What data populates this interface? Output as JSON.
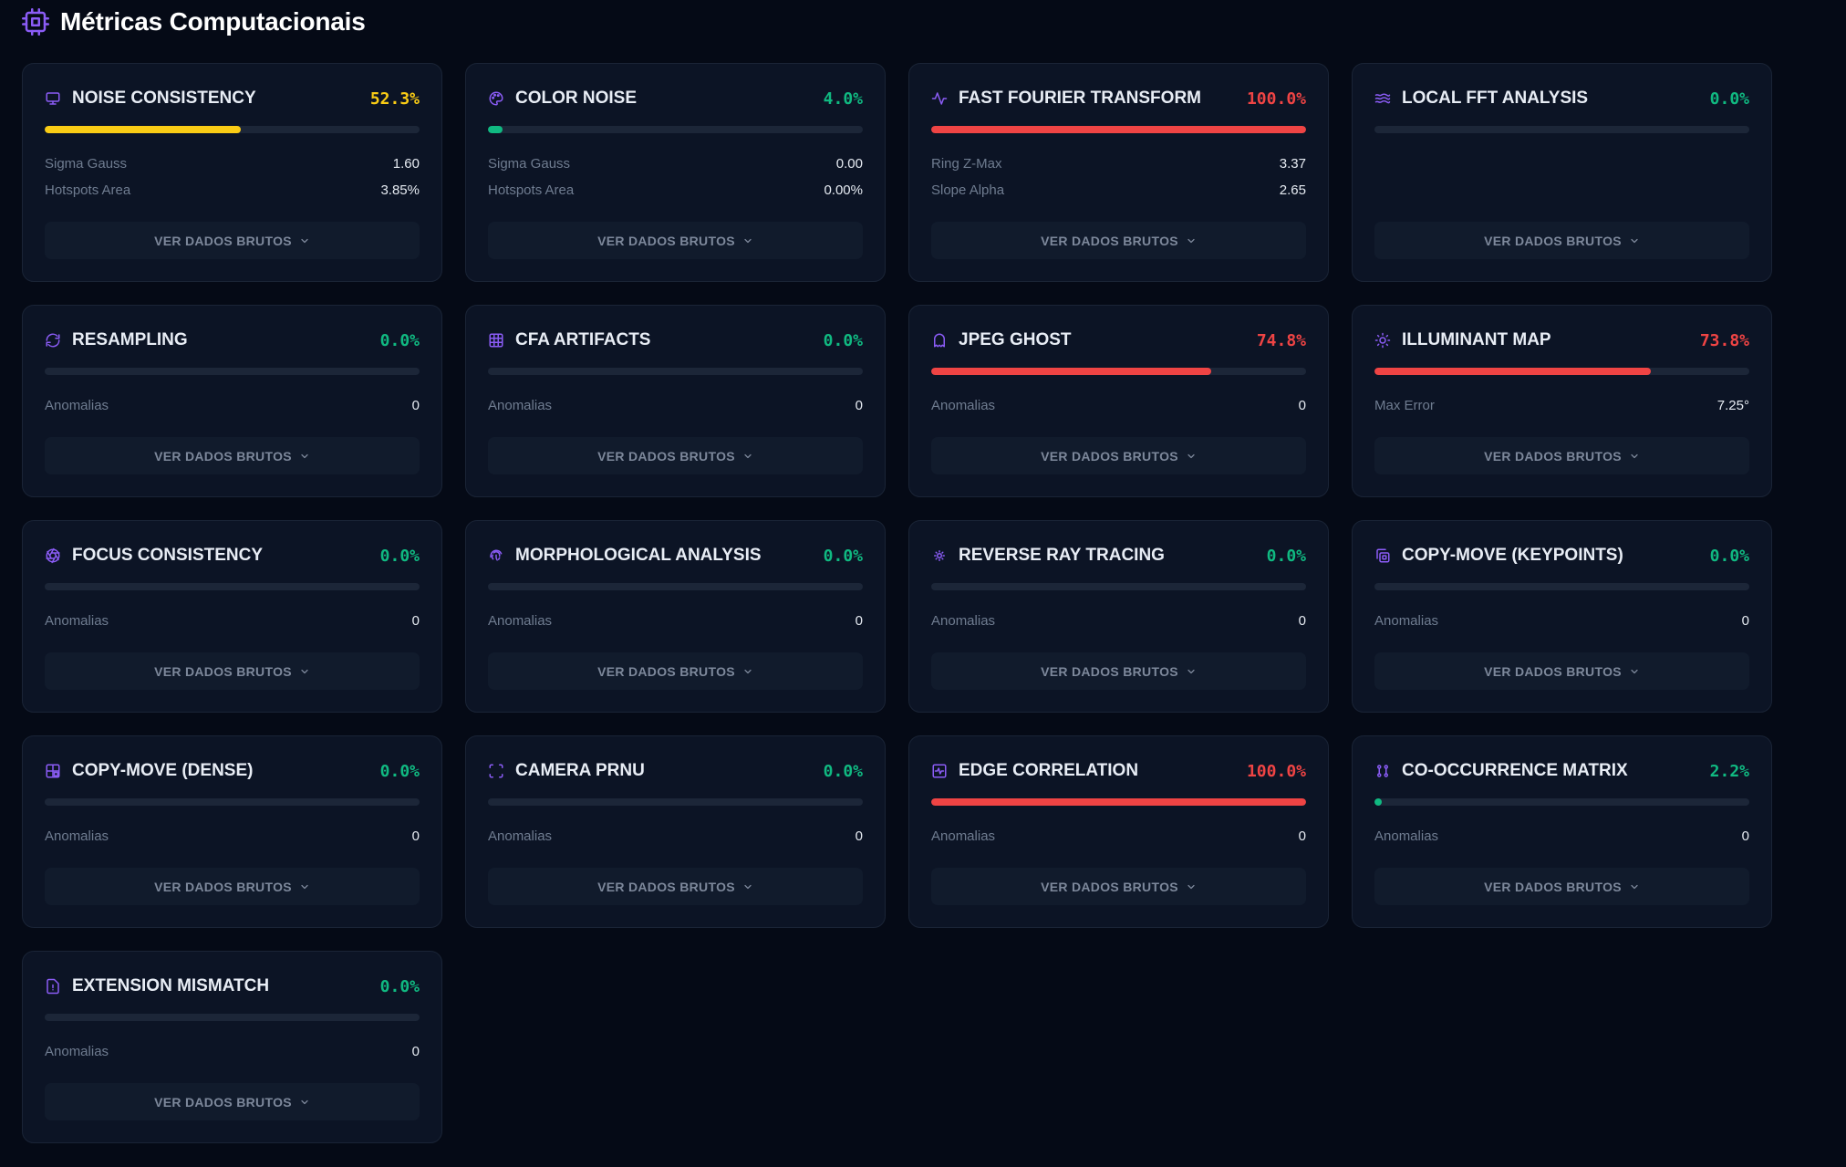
{
  "page": {
    "title": "Métricas Computacionais"
  },
  "colors": {
    "accent": "#8b5cf6",
    "warn": "#facc15",
    "danger": "#ef4444",
    "ok": "#10b981"
  },
  "cards": [
    {
      "title": "NOISE CONSISTENCY",
      "icon": "monitor-icon",
      "score": "52.3%",
      "level": 52.3,
      "status": "warn",
      "metrics": [
        {
          "label": "Sigma Gauss",
          "value": "1.60"
        },
        {
          "label": "Hotspots Area",
          "value": "3.85%"
        }
      ],
      "button": "VER DADOS BRUTOS"
    },
    {
      "title": "COLOR NOISE",
      "icon": "palette-icon",
      "score": "4.0%",
      "level": 4.0,
      "status": "ok",
      "metrics": [
        {
          "label": "Sigma Gauss",
          "value": "0.00"
        },
        {
          "label": "Hotspots Area",
          "value": "0.00%"
        }
      ],
      "button": "VER DADOS BRUTOS"
    },
    {
      "title": "FAST FOURIER TRANSFORM",
      "icon": "activity-icon",
      "score": "100.0%",
      "level": 100,
      "status": "danger",
      "metrics": [
        {
          "label": "Ring Z-Max",
          "value": "3.37"
        },
        {
          "label": "Slope Alpha",
          "value": "2.65"
        }
      ],
      "button": "VER DADOS BRUTOS"
    },
    {
      "title": "LOCAL FFT ANALYSIS",
      "icon": "waves-icon",
      "score": "0.0%",
      "level": 0,
      "status": "ok",
      "metrics": [],
      "button": "VER DADOS BRUTOS"
    },
    {
      "title": "RESAMPLING",
      "icon": "refresh-icon",
      "score": "0.0%",
      "level": 0,
      "status": "ok",
      "metrics": [
        {
          "label": "Anomalias",
          "value": "0"
        }
      ],
      "button": "VER DADOS BRUTOS"
    },
    {
      "title": "CFA ARTIFACTS",
      "icon": "grid-icon",
      "score": "0.0%",
      "level": 0,
      "status": "ok",
      "metrics": [
        {
          "label": "Anomalias",
          "value": "0"
        }
      ],
      "button": "VER DADOS BRUTOS"
    },
    {
      "title": "JPEG GHOST",
      "icon": "ghost-icon",
      "score": "74.8%",
      "level": 74.8,
      "status": "danger",
      "metrics": [
        {
          "label": "Anomalias",
          "value": "0"
        }
      ],
      "button": "VER DADOS BRUTOS"
    },
    {
      "title": "ILLUMINANT MAP",
      "icon": "sun-icon",
      "score": "73.8%",
      "level": 73.8,
      "status": "danger",
      "metrics": [
        {
          "label": "Max Error",
          "value": "7.25°"
        }
      ],
      "button": "VER DADOS BRUTOS"
    },
    {
      "title": "FOCUS CONSISTENCY",
      "icon": "aperture-icon",
      "score": "0.0%",
      "level": 0,
      "status": "ok",
      "metrics": [
        {
          "label": "Anomalias",
          "value": "0"
        }
      ],
      "button": "VER DADOS BRUTOS"
    },
    {
      "title": "MORPHOLOGICAL ANALYSIS",
      "icon": "fingerprint-icon",
      "score": "0.0%",
      "level": 0,
      "status": "ok",
      "metrics": [
        {
          "label": "Anomalias",
          "value": "0"
        }
      ],
      "button": "VER DADOS BRUTOS"
    },
    {
      "title": "REVERSE RAY TRACING",
      "icon": "sun-small-icon",
      "score": "0.0%",
      "level": 0,
      "status": "ok",
      "metrics": [
        {
          "label": "Anomalias",
          "value": "0"
        }
      ],
      "button": "VER DADOS BRUTOS"
    },
    {
      "title": "COPY-MOVE (KEYPOINTS)",
      "icon": "copy-icon",
      "score": "0.0%",
      "level": 0,
      "status": "ok",
      "metrics": [
        {
          "label": "Anomalias",
          "value": "0"
        }
      ],
      "button": "VER DADOS BRUTOS"
    },
    {
      "title": "COPY-MOVE (DENSE)",
      "icon": "layout-icon",
      "score": "0.0%",
      "level": 0,
      "status": "ok",
      "metrics": [
        {
          "label": "Anomalias",
          "value": "0"
        }
      ],
      "button": "VER DADOS BRUTOS"
    },
    {
      "title": "CAMERA PRNU",
      "icon": "scan-icon",
      "score": "0.0%",
      "level": 0,
      "status": "ok",
      "metrics": [
        {
          "label": "Anomalias",
          "value": "0"
        }
      ],
      "button": "VER DADOS BRUTOS"
    },
    {
      "title": "EDGE CORRELATION",
      "icon": "square-activity-icon",
      "score": "100.0%",
      "level": 100,
      "status": "danger",
      "metrics": [
        {
          "label": "Anomalias",
          "value": "0"
        }
      ],
      "button": "VER DADOS BRUTOS"
    },
    {
      "title": "CO-OCCURRENCE MATRIX",
      "icon": "dots-icon",
      "score": "2.2%",
      "level": 2.2,
      "status": "ok",
      "metrics": [
        {
          "label": "Anomalias",
          "value": "0"
        }
      ],
      "button": "VER DADOS BRUTOS"
    },
    {
      "title": "EXTENSION MISMATCH",
      "icon": "file-alert-icon",
      "score": "0.0%",
      "level": 0,
      "status": "ok",
      "metrics": [
        {
          "label": "Anomalias",
          "value": "0"
        }
      ],
      "button": "VER DADOS BRUTOS"
    }
  ]
}
